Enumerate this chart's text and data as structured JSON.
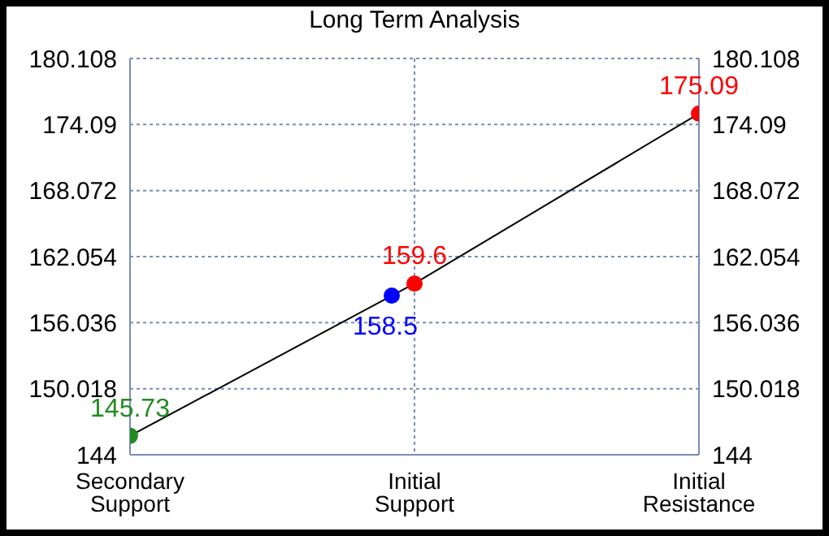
{
  "chart_data": {
    "type": "line",
    "title": "Long Term Analysis",
    "categories": [
      "Secondary Support",
      "Initial Support",
      "Initial Resistance"
    ],
    "ylim": [
      144,
      180.108
    ],
    "yticks": [
      144,
      150.018,
      156.036,
      162.054,
      168.072,
      174.09,
      180.108
    ],
    "y2lim": [
      144,
      180.108
    ],
    "y2ticks": [
      144,
      150.018,
      156.036,
      162.054,
      168.072,
      174.09,
      180.108
    ],
    "series": [
      {
        "color": "#000000",
        "values": [
          145.73,
          159.6,
          175.09
        ],
        "colors": [
          "#228b22",
          "#ff0000",
          "#ff0000"
        ]
      },
      {
        "type": "scatter",
        "color": "#0000ff",
        "x": [
          "Initial Support"
        ],
        "values": [
          158.5
        ]
      }
    ],
    "marker": "circle",
    "data_labels": true,
    "grid": true
  }
}
